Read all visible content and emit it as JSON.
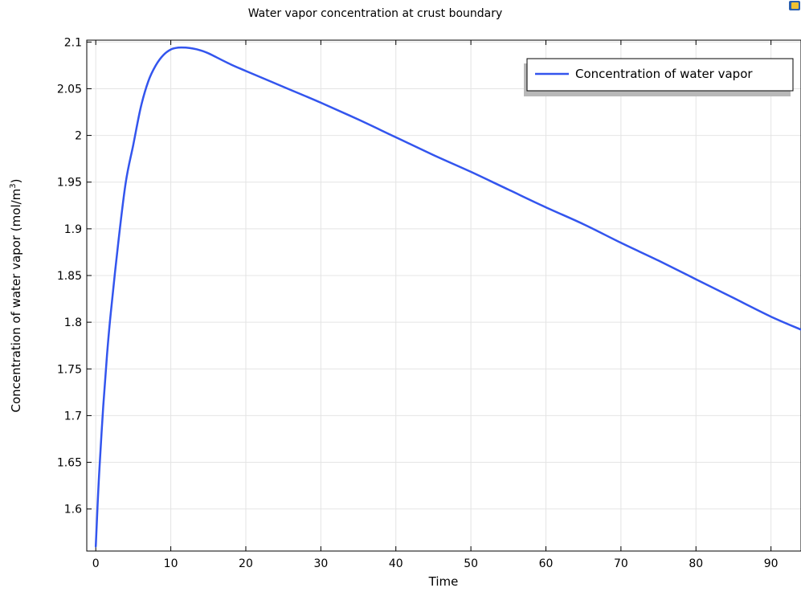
{
  "chart_data": {
    "type": "line",
    "title": "Water vapor concentration at crust boundary",
    "xlabel": "Time",
    "ylabel": "Concentration of water vapor (mol/m",
    "ylabel_sup": "3",
    "ylabel_close": ")",
    "xlim": [
      -1.2,
      94
    ],
    "ylim": [
      1.555,
      2.102
    ],
    "xticks": [
      0,
      10,
      20,
      30,
      40,
      50,
      60,
      70,
      80,
      90
    ],
    "xtick_labels": [
      "0",
      "10",
      "20",
      "30",
      "40",
      "50",
      "60",
      "70",
      "80",
      "90"
    ],
    "yticks": [
      1.6,
      1.65,
      1.7,
      1.75,
      1.8,
      1.85,
      1.9,
      1.95,
      2.0,
      2.05,
      2.1
    ],
    "ytick_labels": [
      "1.6",
      "1.65",
      "1.7",
      "1.75",
      "1.8",
      "1.85",
      "1.9",
      "1.95",
      "2",
      "2.05",
      "2.1"
    ],
    "grid": true,
    "legend_position": "top-right",
    "series": [
      {
        "name": "Concentration of water vapor",
        "color": "#3355ee",
        "x": [
          0,
          0.25,
          0.5,
          1,
          1.5,
          2,
          3,
          4,
          5,
          6,
          7,
          8,
          9,
          10,
          11,
          12,
          13,
          14,
          15,
          16,
          18,
          20,
          25,
          30,
          35,
          40,
          45,
          50,
          55,
          60,
          65,
          70,
          75,
          80,
          85,
          90,
          94
        ],
        "y": [
          1.56,
          1.605,
          1.645,
          1.71,
          1.765,
          1.81,
          1.885,
          1.95,
          1.99,
          2.03,
          2.058,
          2.075,
          2.086,
          2.092,
          2.094,
          2.094,
          2.093,
          2.091,
          2.088,
          2.084,
          2.076,
          2.069,
          2.052,
          2.035,
          2.017,
          1.998,
          1.979,
          1.961,
          1.942,
          1.923,
          1.905,
          1.885,
          1.866,
          1.846,
          1.826,
          1.806,
          1.792
        ]
      }
    ]
  },
  "icons": {
    "corner": "app-logo-icon"
  }
}
